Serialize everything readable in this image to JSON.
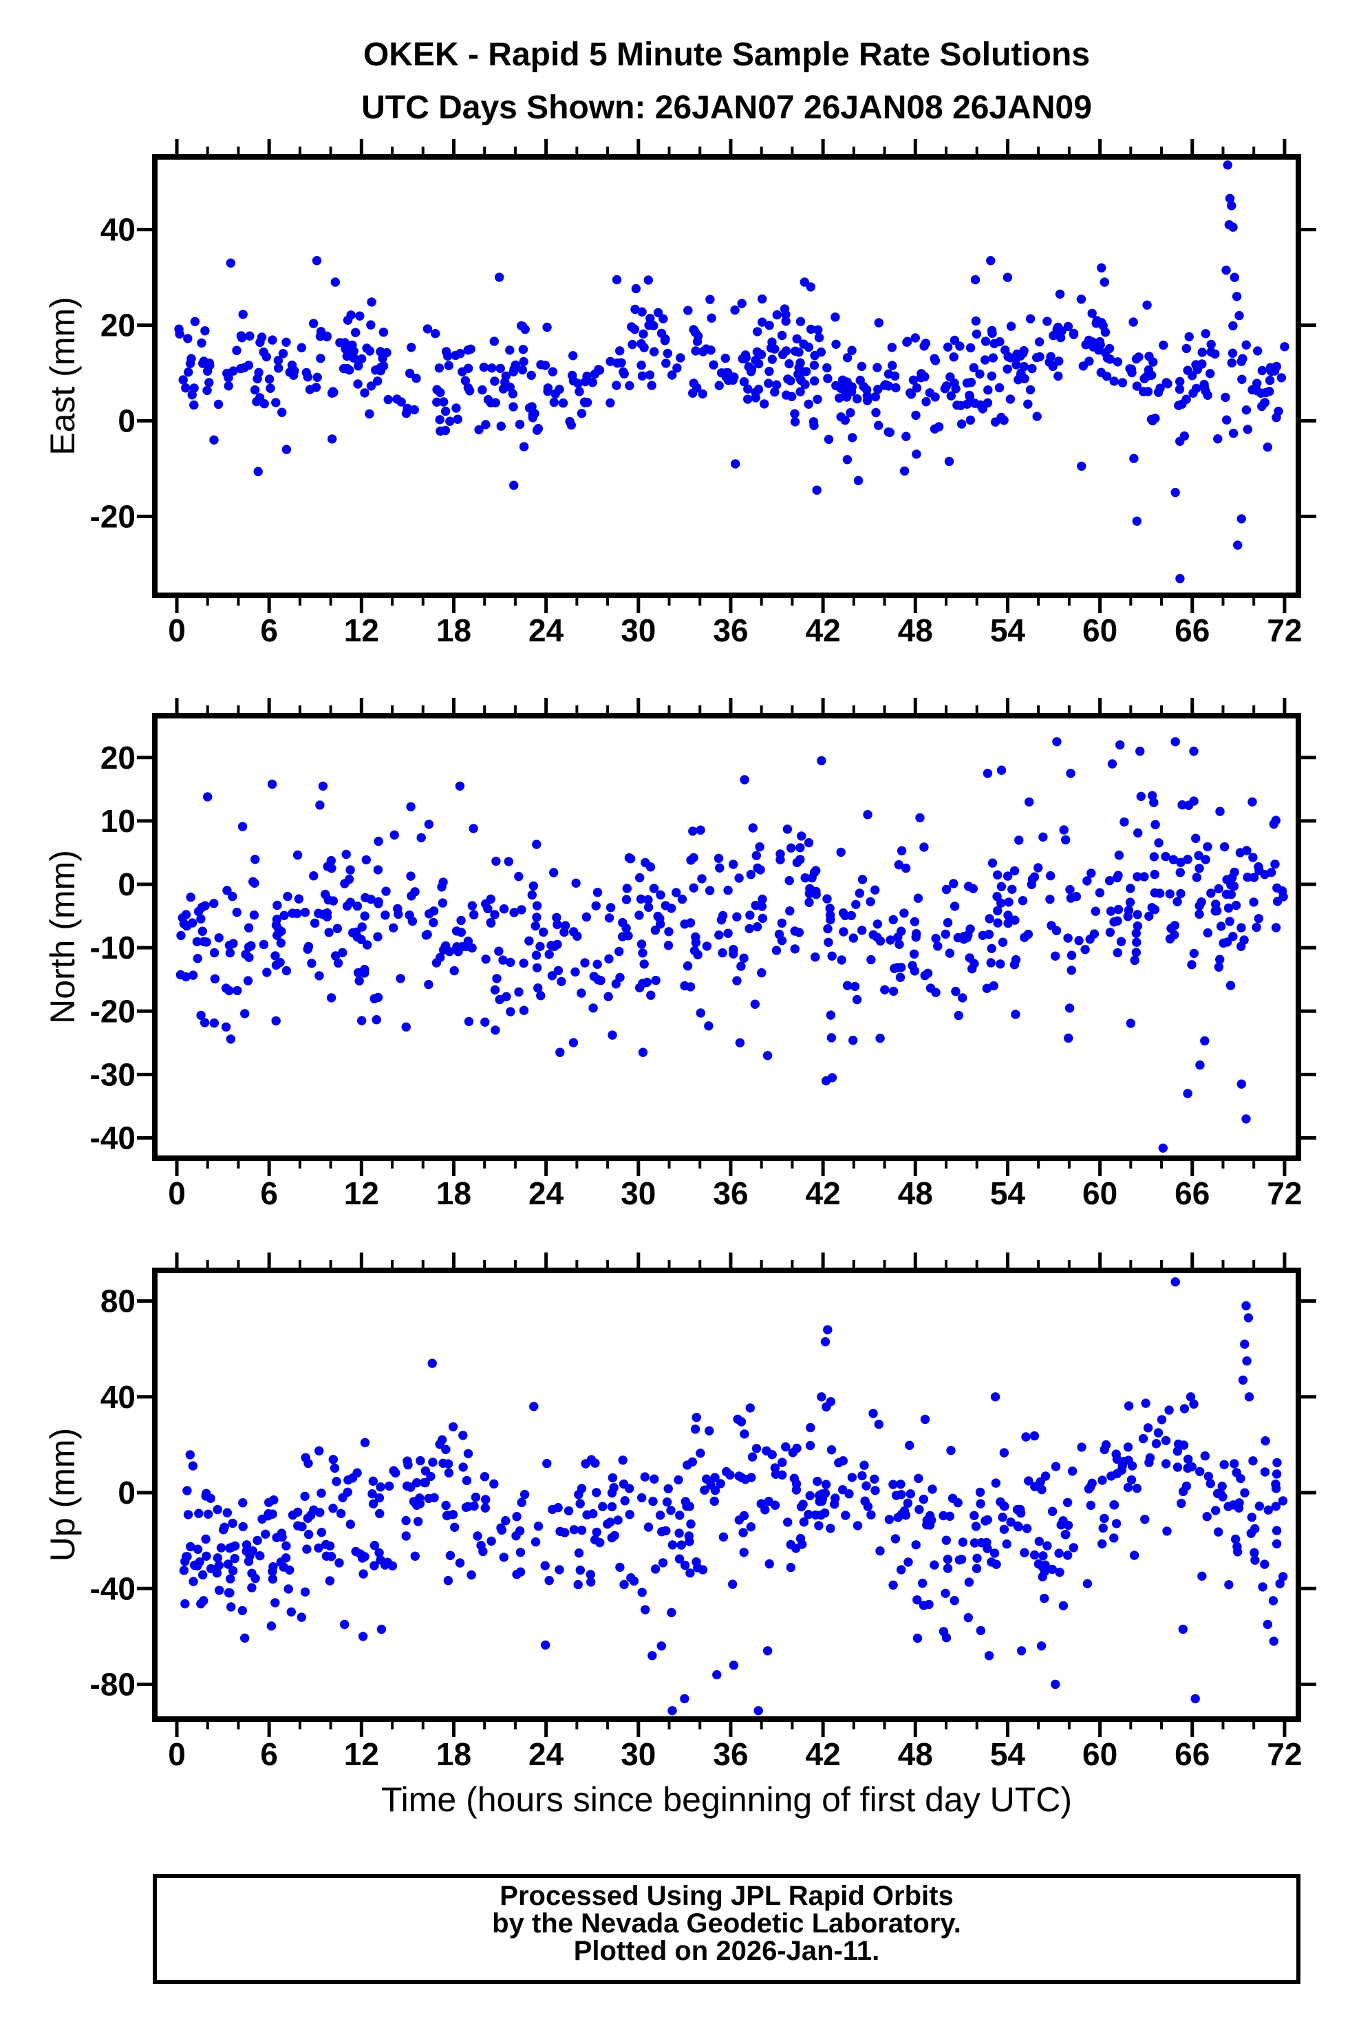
{
  "header": {
    "title_line1": "OKEK - Rapid 5 Minute Sample Rate Solutions",
    "title_line2": "UTC Days Shown:  26JAN07 26JAN08 26JAN09"
  },
  "footer": {
    "line1": "Processed Using JPL Rapid Orbits",
    "line2": "by the Nevada Geodetic Laboratory.",
    "line3": "Plotted on 2026-Jan-11."
  },
  "chart_data": {
    "type": "scatter",
    "title": "OKEK - Rapid 5 Minute Sample Rate Solutions",
    "subtitle": "UTC Days Shown:  26JAN07 26JAN08 26JAN09",
    "station": "OKEK",
    "utc_days": [
      "26JAN07",
      "26JAN08",
      "26JAN09"
    ],
    "marker": {
      "color": "#0202EE",
      "radius": 6.7
    },
    "x": {
      "label": "Time (hours since beginning of first day UTC)",
      "lim": [
        -1.43,
        72.9
      ],
      "major_ticks": [
        0,
        6,
        12,
        18,
        24,
        30,
        36,
        42,
        48,
        54,
        60,
        66,
        72
      ],
      "minor_step": 2,
      "data_range": [
        0.1,
        71.95
      ]
    },
    "panels": [
      {
        "name": "east",
        "ylabel": "East (mm)",
        "ylim": [
          -36.5,
          55.2
        ],
        "yticks": [
          -20,
          0,
          20,
          40
        ],
        "cloud": {
          "seed": 7,
          "n": 600,
          "mean": 10.5,
          "std": 6.0,
          "waves": [
            [
              3.2,
              24,
              -0.8
            ],
            [
              2.2,
              9.5,
              0.6
            ]
          ],
          "soft_lo": -14,
          "soft_hi": 32
        },
        "outliers": [
          [
            68.3,
            53.5
          ],
          [
            68.45,
            46.5
          ],
          [
            68.55,
            45
          ],
          [
            68.4,
            41
          ],
          [
            68.65,
            40.5
          ],
          [
            68.2,
            31.5
          ],
          [
            68.75,
            30
          ],
          [
            68.9,
            26
          ],
          [
            69.05,
            22
          ],
          [
            69.2,
            -20.5
          ],
          [
            68.95,
            -26
          ],
          [
            65.2,
            -33
          ],
          [
            62.4,
            -21
          ],
          [
            64.9,
            -15
          ],
          [
            41.6,
            -14.5
          ],
          [
            44.3,
            -12.5
          ],
          [
            21.9,
            -13.5
          ],
          [
            47.3,
            -10.5
          ],
          [
            58.8,
            -9.5
          ],
          [
            36.3,
            -9
          ],
          [
            50.2,
            -8.5
          ],
          [
            71.6,
            2
          ],
          [
            70.9,
            -5.5
          ],
          [
            3.5,
            33
          ],
          [
            9.1,
            33.5
          ],
          [
            52.9,
            33.5
          ],
          [
            54.0,
            30
          ],
          [
            10.3,
            29
          ],
          [
            28.6,
            29.5
          ],
          [
            40.8,
            29
          ],
          [
            41.2,
            28
          ],
          [
            51.9,
            29.5
          ],
          [
            60.1,
            32
          ],
          [
            60.3,
            29
          ],
          [
            57.4,
            26.5
          ],
          [
            72.0,
            15.5
          ],
          [
            71.8,
            9
          ]
        ]
      },
      {
        "name": "north",
        "ylabel": "North (mm)",
        "ylim": [
          -43.2,
          26.6
        ],
        "yticks": [
          -40,
          -30,
          -20,
          -10,
          0,
          10,
          20
        ],
        "cloud": {
          "seed": 11,
          "n": 600,
          "mean": -7,
          "std": 6.8,
          "waves": [
            [
              2.5,
              24,
              -2.1
            ],
            [
              2.0,
              8,
              2.2
            ]
          ],
          "soft_lo": -24,
          "soft_hi": 12,
          "late_start": 48,
          "late_slope": 0.25
        },
        "outliers": [
          [
            64.1,
            -41.6
          ],
          [
            65.7,
            -33
          ],
          [
            69.5,
            -37
          ],
          [
            69.2,
            -31.5
          ],
          [
            66.5,
            -28.5
          ],
          [
            42.2,
            -31
          ],
          [
            42.6,
            -30.5
          ],
          [
            38.4,
            -27
          ],
          [
            30.3,
            -26.5
          ],
          [
            24.9,
            -26.5
          ],
          [
            36.6,
            -25
          ],
          [
            20.7,
            -23
          ],
          [
            3.2,
            -22.5
          ],
          [
            14.9,
            -22.5
          ],
          [
            57.2,
            22.5
          ],
          [
            61.3,
            22
          ],
          [
            62.6,
            21
          ],
          [
            64.9,
            22.5
          ],
          [
            66.1,
            21
          ],
          [
            60.8,
            19
          ],
          [
            41.9,
            19.5
          ],
          [
            36.9,
            16.5
          ],
          [
            52.7,
            17.5
          ],
          [
            53.6,
            18
          ],
          [
            58.1,
            17.5
          ],
          [
            18.4,
            15.5
          ],
          [
            9.5,
            15.5
          ],
          [
            9.3,
            12.5
          ],
          [
            69.9,
            13
          ],
          [
            71.3,
            9.5
          ],
          [
            6.2,
            15.8
          ],
          [
            2.0,
            13.8
          ],
          [
            44.9,
            11
          ],
          [
            48.3,
            10.5
          ],
          [
            55.4,
            13
          ],
          [
            63.4,
            14
          ],
          [
            67.8,
            11.5
          ]
        ]
      },
      {
        "name": "up",
        "ylabel": "Up (mm)",
        "ylim": [
          -94.5,
          92.8
        ],
        "yticks": [
          -80,
          -40,
          0,
          40,
          80
        ],
        "cloud": {
          "seed": 23,
          "n": 600,
          "mean": -8,
          "std": 16,
          "waves": [
            [
              11,
              24,
              -2.6
            ],
            [
              7,
              9,
              1.3
            ]
          ],
          "soft_lo": -60,
          "soft_hi": 34,
          "early_end": 24,
          "early_offset": -7
        },
        "outliers": [
          [
            64.9,
            88
          ],
          [
            69.5,
            78
          ],
          [
            69.65,
            73
          ],
          [
            69.4,
            62
          ],
          [
            69.55,
            55
          ],
          [
            69.3,
            47
          ],
          [
            69.7,
            40
          ],
          [
            42.3,
            68
          ],
          [
            42.15,
            63
          ],
          [
            16.6,
            54
          ],
          [
            41.9,
            40
          ],
          [
            42.5,
            38
          ],
          [
            53.2,
            40
          ],
          [
            65.9,
            40
          ],
          [
            66.1,
            37
          ],
          [
            23.2,
            36
          ],
          [
            32.2,
            -91
          ],
          [
            37.8,
            -91
          ],
          [
            33.0,
            -86
          ],
          [
            66.2,
            -86
          ],
          [
            35.1,
            -76
          ],
          [
            57.1,
            -80
          ],
          [
            30.9,
            -68
          ],
          [
            52.8,
            -68
          ],
          [
            54.9,
            -66
          ],
          [
            65.4,
            -57
          ],
          [
            71.3,
            -62
          ],
          [
            70.9,
            -55
          ],
          [
            36.2,
            -72
          ],
          [
            38.4,
            -66
          ],
          [
            31.5,
            -64
          ],
          [
            56.2,
            -64
          ],
          [
            12.1,
            -60
          ],
          [
            13.3,
            -57
          ],
          [
            10.9,
            -55
          ],
          [
            71.7,
            -38
          ],
          [
            71.9,
            -35
          ]
        ]
      }
    ],
    "layout_hints": {
      "grid": false,
      "legend": "none",
      "frame_ticks": "outward, mirrored on all sides"
    }
  }
}
